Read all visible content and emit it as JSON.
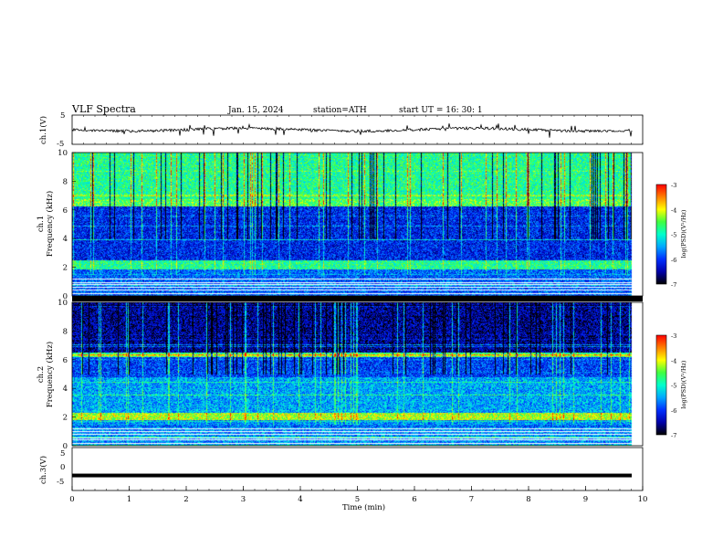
{
  "header": {
    "title": "VLF  Spectra",
    "date": "Jan. 15, 2024",
    "station": "station=ATH",
    "start_ut": "start  UT  =    16: 30: 1"
  },
  "chart_data": [
    {
      "type": "line",
      "panel": "ch1-waveform",
      "ylabel": "ch.1(V)",
      "ylim": [
        -5,
        5
      ],
      "y_ticks": [
        "5",
        "-5"
      ],
      "xlim": [
        0,
        10
      ],
      "data_extent_min": 9.8,
      "series": [
        {
          "values_description_note": "",
          "style": "noisy waveform near 0 V"
        }
      ]
    },
    {
      "type": "heatmap",
      "panel": "ch1-spectrogram",
      "ylabel": "ch.1\nFrequency  (kHz)",
      "ylabel_lines": [
        "ch.1",
        "Frequency  (kHz)"
      ],
      "ylim": [
        0,
        10
      ],
      "y_ticks": [
        "0",
        "2",
        "4",
        "6",
        "8",
        "10"
      ],
      "xlim": [
        0,
        10
      ],
      "colorbar": {
        "label": "log(PSD)(V²/Hz)",
        "ticks": [
          "-3",
          "-4",
          "-5",
          "-6",
          "-7"
        ],
        "range": [
          -7,
          -3
        ]
      }
    },
    {
      "type": "heatmap",
      "panel": "ch2-spectrogram",
      "ylabel_lines": [
        "ch.2",
        "Frequency  (kHz)"
      ],
      "ylim": [
        0,
        10
      ],
      "y_ticks": [
        "0",
        "2",
        "4",
        "6",
        "8",
        "10"
      ],
      "xlim": [
        0,
        10
      ],
      "colorbar": {
        "label": "log(PSD)(V²/Hz)",
        "ticks": [
          "-3",
          "-4",
          "-5",
          "-6",
          "-7"
        ],
        "range": [
          -7,
          -3
        ]
      }
    },
    {
      "type": "line",
      "panel": "ch3-waveform",
      "ylabel": "ch.3(V)",
      "ylim": [
        -5,
        5
      ],
      "y_ticks": [
        "5",
        "0",
        "-5"
      ],
      "xlim": [
        0,
        10
      ],
      "series": [
        {
          "level_volts": -1.5
        }
      ]
    }
  ],
  "xaxis": {
    "label": "Time  (min)",
    "ticks": [
      "0",
      "1",
      "2",
      "3",
      "4",
      "5",
      "6",
      "7",
      "8",
      "9",
      "10"
    ],
    "range": [
      0,
      10
    ]
  },
  "colors": {
    "colormap": [
      "#000000",
      "#0000aa",
      "#0030ff",
      "#00a8ff",
      "#00ffcc",
      "#40ff40",
      "#ffff00",
      "#ff8000",
      "#ff0000",
      "#ffffff"
    ],
    "trace": "#000000"
  }
}
